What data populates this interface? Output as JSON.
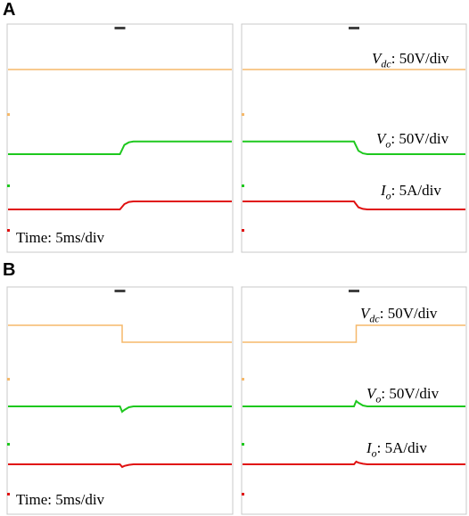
{
  "panels": [
    {
      "letter": "A"
    },
    {
      "letter": "B"
    }
  ],
  "labels": {
    "vdc_sym": "V",
    "vdc_sub": "dc",
    "vdc_scale": ": 50V/div",
    "vo_sym": "V",
    "vo_sub": "o",
    "vo_scale": ": 50V/div",
    "io_sym": "I",
    "io_sub": "o",
    "io_scale": ": 5A/div",
    "timebase": "Time: 5ms/div"
  },
  "colors": {
    "vdc": "#f5b86a",
    "vo": "#1ec81e",
    "io": "#e01010",
    "frame": "#c8c8c8",
    "trigger": "#404040"
  },
  "chart_data": [
    {
      "type": "line",
      "panel": "A-left",
      "description_of_event": "load step up",
      "x": [
        0,
        25,
        26,
        27,
        28,
        50
      ],
      "series": [
        {
          "name": "Vdc",
          "values": [
            0,
            0,
            0,
            0,
            0,
            0
          ]
        },
        {
          "name": "Vo",
          "values": [
            1.0,
            1.0,
            1.55,
            1.7,
            1.75,
            1.75
          ]
        },
        {
          "name": "Io",
          "values": [
            1.0,
            1.0,
            1.5,
            1.7,
            1.75,
            1.75
          ]
        }
      ]
    },
    {
      "type": "line",
      "panel": "A-right",
      "x": [
        0,
        25,
        26,
        27,
        28,
        50
      ],
      "series": [
        {
          "name": "Vdc",
          "values": [
            0,
            0,
            0,
            0,
            0,
            0
          ]
        },
        {
          "name": "Vo",
          "values": [
            1.75,
            1.75,
            1.2,
            1.05,
            1.0,
            1.0
          ]
        },
        {
          "name": "Io",
          "values": [
            1.75,
            1.75,
            1.2,
            1.05,
            1.0,
            1.0
          ]
        }
      ]
    },
    {
      "type": "line",
      "panel": "B-left",
      "x": [
        0,
        25,
        25.5,
        26,
        27,
        28,
        50
      ],
      "series": [
        {
          "name": "Vdc",
          "values": [
            1.0,
            1.0,
            0.0,
            0.0,
            0.0,
            0.0,
            0.0
          ]
        },
        {
          "name": "Vo",
          "values": [
            1.0,
            1.0,
            0.7,
            0.8,
            0.95,
            1.0,
            1.0
          ]
        },
        {
          "name": "Io",
          "values": [
            1.0,
            1.0,
            0.75,
            0.85,
            0.95,
            1.0,
            1.0
          ]
        }
      ]
    },
    {
      "type": "line",
      "panel": "B-right",
      "x": [
        0,
        25,
        25.5,
        26,
        27,
        28,
        50
      ],
      "series": [
        {
          "name": "Vdc",
          "values": [
            0.0,
            0.0,
            1.0,
            1.0,
            1.0,
            1.0,
            1.0
          ]
        },
        {
          "name": "Vo",
          "values": [
            1.0,
            1.0,
            1.3,
            1.2,
            1.05,
            1.0,
            1.0
          ]
        },
        {
          "name": "Io",
          "values": [
            1.0,
            1.0,
            1.25,
            1.15,
            1.05,
            1.0,
            1.0
          ]
        }
      ]
    }
  ]
}
